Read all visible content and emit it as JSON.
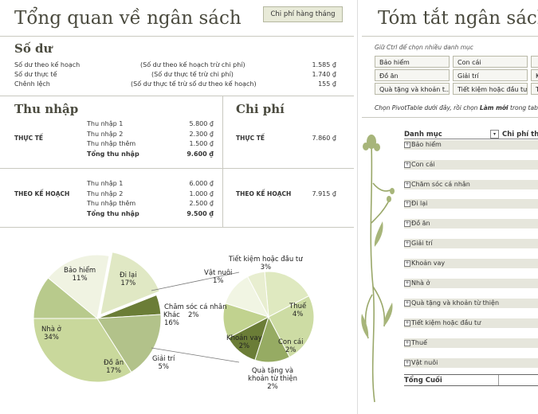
{
  "overview": {
    "title": "Tổng quan về ngân sách",
    "monthly_button": "Chi phí hàng tháng",
    "balance": {
      "heading": "Số dư",
      "rows": [
        {
          "label": "Số dư theo kế hoạch",
          "formula": "(Số dư theo kế hoạch trừ chi phí)",
          "value": "1.585 ₫"
        },
        {
          "label": "Số dư thực tế",
          "formula": "(Số dư thực tế trừ chi phí)",
          "value": "1.740 ₫"
        },
        {
          "label": "Chênh lệch",
          "formula": "(Số dư thực tế trừ số dư theo kế hoạch)",
          "value": "155 ₫"
        }
      ]
    },
    "income": {
      "heading": "Thu nhập",
      "actual_label": "THỰC TẾ",
      "actual": [
        {
          "label": "Thu nhập 1",
          "value": "5.800 ₫"
        },
        {
          "label": "Thu nhập 2",
          "value": "2.300 ₫"
        },
        {
          "label": "Thu nhập thêm",
          "value": "1.500 ₫"
        },
        {
          "label": "Tổng thu nhập",
          "value": "9.600 ₫"
        }
      ],
      "planned_label": "THEO KẾ HOẠCH",
      "planned": [
        {
          "label": "Thu nhập 1",
          "value": "6.000 ₫"
        },
        {
          "label": "Thu nhập 2",
          "value": "1.000 ₫"
        },
        {
          "label": "Thu nhập thêm",
          "value": "2.500 ₫"
        },
        {
          "label": "Tổng thu nhập",
          "value": "9.500 ₫"
        }
      ]
    },
    "expense": {
      "heading": "Chi phí",
      "actual_label": "THỰC TẾ",
      "actual_value": "7.860 ₫",
      "planned_label": "THEO KẾ HOẠCH",
      "planned_value": "7.915 ₫"
    }
  },
  "chart_data": [
    {
      "type": "pie",
      "values": [
        11,
        17,
        16,
        5,
        17,
        34
      ],
      "categories": [
        "Bảo hiểm",
        "Đi lại",
        "Khác",
        "Giải trí",
        "Đồ ăn",
        "Nhà ở"
      ],
      "labels": [
        {
          "name": "Bảo hiểm",
          "pct": "11%"
        },
        {
          "name": "Đi lại",
          "pct": "17%"
        },
        {
          "name": "Khác",
          "pct": "16%"
        },
        {
          "name": "Giải trí",
          "pct": "5%"
        },
        {
          "name": "Đồ ăn",
          "pct": "17%"
        },
        {
          "name": "Nhà ở",
          "pct": "34%"
        }
      ],
      "colors": [
        "#b8ca8c",
        "#f0f3e2",
        "#e0e8c4",
        "#6b7d37",
        "#b2c28a",
        "#c9d89c"
      ]
    },
    {
      "type": "pie",
      "values": [
        3,
        4,
        2,
        2,
        2,
        2,
        1
      ],
      "categories": [
        "Tiết kiệm hoặc đầu tư",
        "Thuế",
        "Con cái",
        "Quà tặng và khoản từ thiện",
        "Khoản vay",
        "Chăm sóc cá nhân",
        "Vật nuôi"
      ],
      "labels": [
        {
          "name": "Tiết kiệm hoặc đầu tư",
          "pct": "3%"
        },
        {
          "name": "Thuế",
          "pct": "4%"
        },
        {
          "name": "Con cái",
          "pct": "2%"
        },
        {
          "name": "Quà tặng và khoản từ thiện",
          "pct": "2%"
        },
        {
          "name": "Khoản vay",
          "pct": "2%"
        },
        {
          "name": "Chăm sóc cá nhân",
          "pct": "2%"
        },
        {
          "name": "Vật nuôi",
          "pct": "1%"
        }
      ],
      "colors": [
        "#dfe9c0",
        "#cddca4",
        "#96ab63",
        "#6b7d37",
        "#c1d28f",
        "#f1f5e3",
        "#e8eed0"
      ]
    }
  ],
  "summary": {
    "title": "Tóm tắt ngân sách",
    "slicer_hint": "Giữ Ctrl để chọn nhiều danh mục",
    "slicers": [
      "Bảo hiểm",
      "Con cái",
      "",
      "Đồ ăn",
      "Giải trí",
      "Kh",
      "Quà tặng và khoản t...",
      "Tiết kiệm hoặc đầu tư",
      "T"
    ],
    "pivot_hint_pre": "Chọn PivotTable dưới đây, rồi chọn ",
    "pivot_hint_bold": "Làm mới",
    "pivot_hint_post": " trong tab Pi",
    "pivot": {
      "col1": "Danh mục",
      "col2": "Chi phí theo",
      "rows": [
        "Bảo hiểm",
        "Con cái",
        "Chăm sóc cá nhân",
        "Đi lại",
        "Đồ ăn",
        "Giải trí",
        "Khoản vay",
        "Nhà ở",
        "Quà tặng và khoản từ thiện",
        "Tiết kiệm hoặc đầu tư",
        "Thuế",
        "Vật nuôi"
      ],
      "total": "Tổng Cuối"
    }
  }
}
